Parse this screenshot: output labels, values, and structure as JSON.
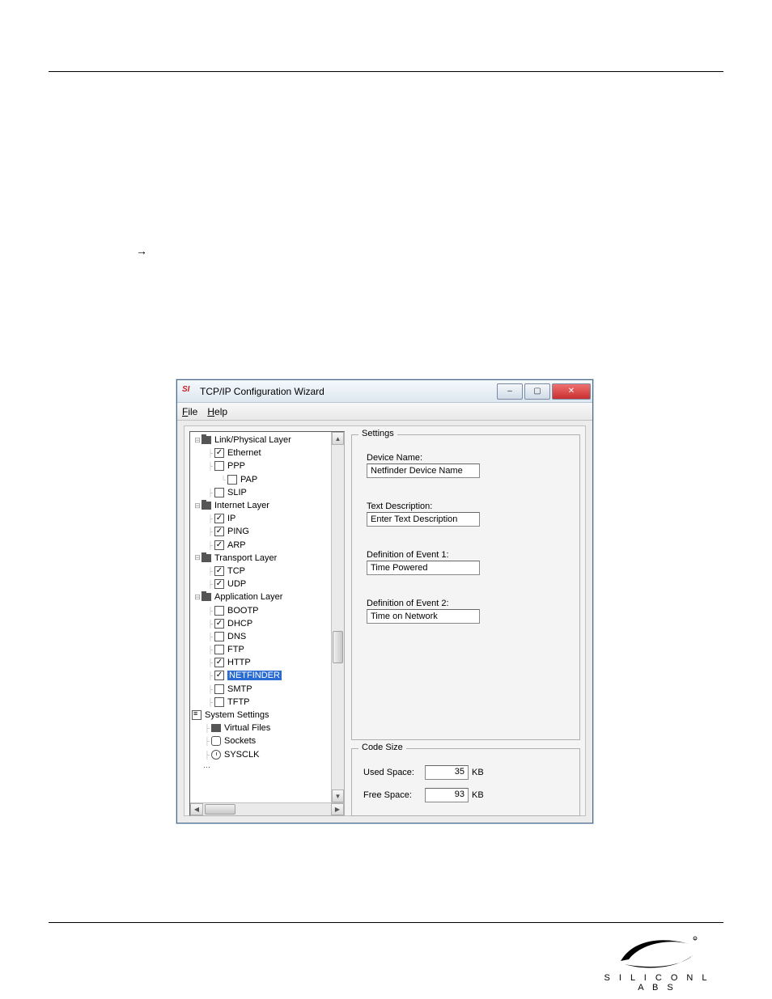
{
  "window": {
    "title": "TCP/IP Configuration Wizard",
    "icon_label": "SI",
    "menus": {
      "file": "File",
      "help": "Help"
    },
    "controls": {
      "min": "–",
      "max": "▢",
      "close": "✕"
    }
  },
  "tree": {
    "groups": [
      {
        "label": "Link/Physical Layer",
        "icon": "folder",
        "items": [
          {
            "label": "Ethernet",
            "checked": true
          },
          {
            "label": "PPP",
            "checked": false,
            "children": [
              {
                "label": "PAP",
                "checked": false
              }
            ]
          },
          {
            "label": "SLIP",
            "checked": false
          }
        ]
      },
      {
        "label": "Internet Layer",
        "icon": "folder",
        "items": [
          {
            "label": "IP",
            "checked": true
          },
          {
            "label": "PING",
            "checked": true
          },
          {
            "label": "ARP",
            "checked": true
          }
        ]
      },
      {
        "label": "Transport Layer",
        "icon": "folder",
        "items": [
          {
            "label": "TCP",
            "checked": true
          },
          {
            "label": "UDP",
            "checked": true
          }
        ]
      },
      {
        "label": "Application Layer",
        "icon": "folder",
        "items": [
          {
            "label": "BOOTP",
            "checked": false
          },
          {
            "label": "DHCP",
            "checked": true
          },
          {
            "label": "DNS",
            "checked": false
          },
          {
            "label": "FTP",
            "checked": false
          },
          {
            "label": "HTTP",
            "checked": true
          },
          {
            "label": "NETFINDER",
            "checked": true,
            "selected": true
          },
          {
            "label": "SMTP",
            "checked": false
          },
          {
            "label": "TFTP",
            "checked": false
          }
        ]
      }
    ],
    "system": {
      "label": "System Settings",
      "items": [
        {
          "label": "Virtual Files",
          "icon": "vf"
        },
        {
          "label": "Sockets",
          "icon": "sock"
        },
        {
          "label": "SYSCLK",
          "icon": "clk"
        }
      ]
    }
  },
  "settings": {
    "group_label": "Settings",
    "fields": [
      {
        "label": "Device Name:",
        "value": "Netfinder Device Name"
      },
      {
        "label": "Text Description:",
        "value": "Enter Text Description"
      },
      {
        "label": "Definition of Event 1:",
        "value": "Time Powered"
      },
      {
        "label": "Definition of Event 2:",
        "value": "Time on Network"
      }
    ]
  },
  "codesize": {
    "group_label": "Code Size",
    "rows": [
      {
        "label": "Used Space:",
        "value": "35",
        "unit": "KB"
      },
      {
        "label": "Free Space:",
        "value": "93",
        "unit": "KB"
      }
    ]
  },
  "page": {
    "arrow": "→"
  },
  "logo": {
    "text": "S I L I C O N   L A B S"
  }
}
